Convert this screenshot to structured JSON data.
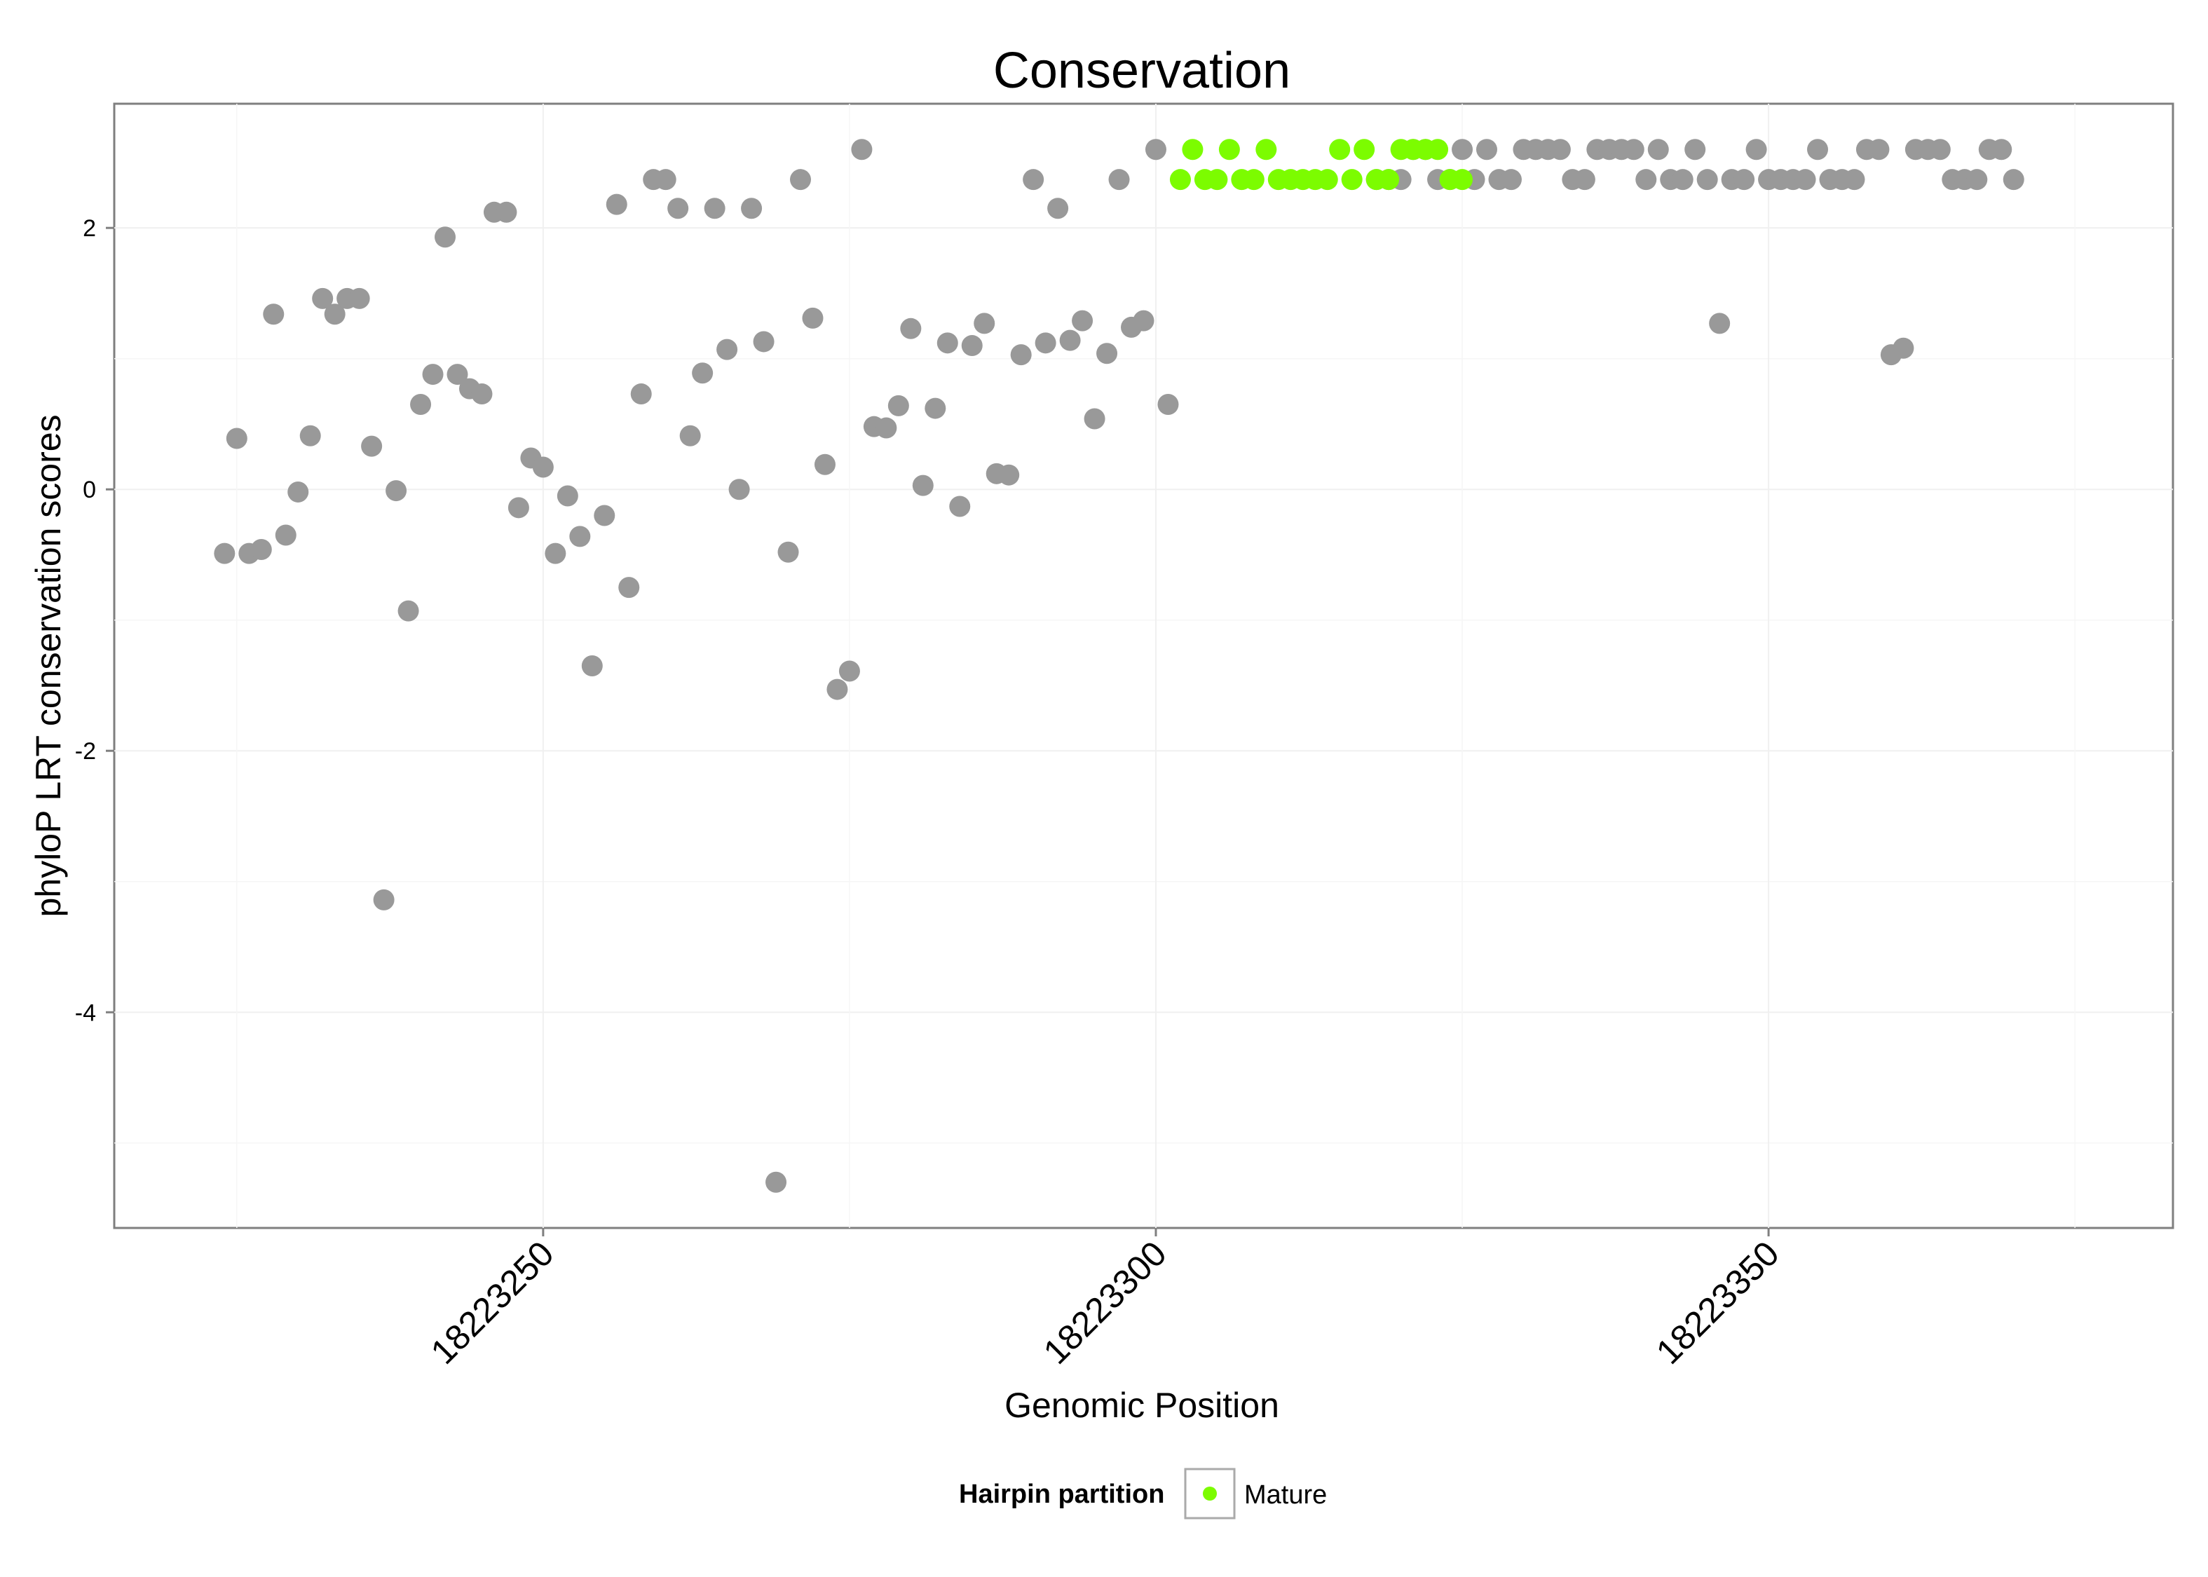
{
  "chart_data": {
    "type": "scatter",
    "title": "Conservation",
    "xlabel": "Genomic Position",
    "ylabel": "phyloP LRT conservation scores",
    "xlim": [
      18223215,
      18223383
    ],
    "ylim": [
      -5.65,
      2.95
    ],
    "x_ticks": [
      18223250,
      18223300,
      18223350
    ],
    "y_ticks": [
      -4,
      -2,
      0,
      2
    ],
    "grid": true,
    "legend": {
      "title": "Hairpin partition",
      "position": "bottom",
      "entries": [
        {
          "label": "Mature",
          "color": "#7CFC00"
        }
      ]
    },
    "colors": {
      "background": "#7CFC00",
      "mature": "#7CFC00"
    },
    "series": [
      {
        "name": "",
        "color": "#999999",
        "points": [
          [
            18223224,
            -0.49
          ],
          [
            18223225,
            0.39
          ],
          [
            18223226,
            -0.49
          ],
          [
            18223227,
            -0.46
          ],
          [
            18223228,
            1.34
          ],
          [
            18223229,
            -0.35
          ],
          [
            18223230,
            -0.02
          ],
          [
            18223231,
            0.41
          ],
          [
            18223232,
            1.46
          ],
          [
            18223233,
            1.34
          ],
          [
            18223234,
            1.46
          ],
          [
            18223235,
            1.46
          ],
          [
            18223236,
            0.33
          ],
          [
            18223237,
            -3.14
          ],
          [
            18223238,
            -0.01
          ],
          [
            18223239,
            -0.93
          ],
          [
            18223240,
            0.65
          ],
          [
            18223241,
            0.88
          ],
          [
            18223242,
            1.93
          ],
          [
            18223243,
            0.88
          ],
          [
            18223244,
            0.77
          ],
          [
            18223245,
            0.73
          ],
          [
            18223246,
            2.12
          ],
          [
            18223247,
            2.12
          ],
          [
            18223248,
            -0.14
          ],
          [
            18223249,
            0.24
          ],
          [
            18223250,
            0.17
          ],
          [
            18223251,
            -0.49
          ],
          [
            18223252,
            -0.05
          ],
          [
            18223253,
            -0.36
          ],
          [
            18223254,
            -1.35
          ],
          [
            18223255,
            -0.2
          ],
          [
            18223256,
            2.18
          ],
          [
            18223257,
            -0.75
          ],
          [
            18223258,
            0.73
          ],
          [
            18223259,
            2.37
          ],
          [
            18223260,
            2.37
          ],
          [
            18223261,
            2.15
          ],
          [
            18223262,
            0.41
          ],
          [
            18223263,
            0.89
          ],
          [
            18223264,
            2.15
          ],
          [
            18223265,
            1.07
          ],
          [
            18223266,
            0.0
          ],
          [
            18223267,
            2.15
          ],
          [
            18223268,
            1.13
          ],
          [
            18223269,
            -5.3
          ],
          [
            18223270,
            -0.48
          ],
          [
            18223271,
            2.37
          ],
          [
            18223272,
            1.31
          ],
          [
            18223273,
            0.19
          ],
          [
            18223274,
            -1.53
          ],
          [
            18223275,
            -1.39
          ],
          [
            18223276,
            2.6
          ],
          [
            18223277,
            0.48
          ],
          [
            18223278,
            0.47
          ],
          [
            18223279,
            0.64
          ],
          [
            18223280,
            1.23
          ],
          [
            18223281,
            0.03
          ],
          [
            18223282,
            0.62
          ],
          [
            18223283,
            1.12
          ],
          [
            18223284,
            -0.13
          ],
          [
            18223285,
            1.1
          ],
          [
            18223286,
            1.27
          ],
          [
            18223287,
            0.12
          ],
          [
            18223288,
            0.11
          ],
          [
            18223289,
            1.03
          ],
          [
            18223290,
            2.37
          ],
          [
            18223291,
            1.12
          ],
          [
            18223292,
            2.15
          ],
          [
            18223293,
            1.14
          ],
          [
            18223294,
            1.29
          ],
          [
            18223295,
            0.54
          ],
          [
            18223296,
            1.04
          ],
          [
            18223297,
            2.37
          ],
          [
            18223298,
            1.24
          ],
          [
            18223299,
            1.29
          ],
          [
            18223300,
            2.6
          ],
          [
            18223301,
            0.65
          ],
          [
            18223318,
            2.37
          ],
          [
            18223319,
            2.37
          ],
          [
            18223320,
            2.37
          ],
          [
            18223321,
            2.6
          ],
          [
            18223322,
            2.6
          ],
          [
            18223323,
            2.37
          ],
          [
            18223324,
            2.37
          ],
          [
            18223325,
            2.6
          ],
          [
            18223326,
            2.37
          ],
          [
            18223327,
            2.6
          ],
          [
            18223328,
            2.37
          ],
          [
            18223329,
            2.37
          ],
          [
            18223330,
            2.6
          ],
          [
            18223331,
            2.6
          ],
          [
            18223332,
            2.6
          ],
          [
            18223333,
            2.6
          ],
          [
            18223334,
            2.37
          ],
          [
            18223335,
            2.37
          ],
          [
            18223336,
            2.6
          ],
          [
            18223337,
            2.6
          ],
          [
            18223338,
            2.6
          ],
          [
            18223339,
            2.6
          ],
          [
            18223340,
            2.37
          ],
          [
            18223341,
            2.6
          ],
          [
            18223342,
            2.37
          ],
          [
            18223343,
            2.37
          ],
          [
            18223344,
            2.6
          ],
          [
            18223345,
            2.37
          ],
          [
            18223346,
            1.27
          ],
          [
            18223347,
            2.37
          ],
          [
            18223348,
            2.37
          ],
          [
            18223349,
            2.6
          ],
          [
            18223350,
            2.37
          ],
          [
            18223351,
            2.37
          ],
          [
            18223352,
            2.37
          ],
          [
            18223353,
            2.37
          ],
          [
            18223354,
            2.6
          ],
          [
            18223355,
            2.37
          ],
          [
            18223356,
            2.37
          ],
          [
            18223357,
            2.37
          ],
          [
            18223358,
            2.6
          ],
          [
            18223359,
            2.6
          ],
          [
            18223360,
            1.03
          ],
          [
            18223361,
            1.08
          ],
          [
            18223362,
            2.6
          ],
          [
            18223363,
            2.6
          ],
          [
            18223364,
            2.6
          ],
          [
            18223365,
            2.37
          ],
          [
            18223366,
            2.37
          ],
          [
            18223367,
            2.37
          ],
          [
            18223368,
            2.6
          ],
          [
            18223369,
            2.6
          ],
          [
            18223370,
            2.37
          ]
        ]
      },
      {
        "name": "Mature",
        "color": "#7CFC00",
        "points": [
          [
            18223302,
            2.37
          ],
          [
            18223303,
            2.6
          ],
          [
            18223304,
            2.37
          ],
          [
            18223305,
            2.37
          ],
          [
            18223306,
            2.6
          ],
          [
            18223307,
            2.37
          ],
          [
            18223308,
            2.37
          ],
          [
            18223309,
            2.6
          ],
          [
            18223310,
            2.37
          ],
          [
            18223311,
            2.37
          ],
          [
            18223312,
            2.37
          ],
          [
            18223313,
            2.37
          ],
          [
            18223314,
            2.37
          ],
          [
            18223315,
            2.6
          ],
          [
            18223316,
            2.37
          ],
          [
            18223317,
            2.6
          ],
          [
            18223318,
            2.37
          ],
          [
            18223319,
            2.37
          ],
          [
            18223320,
            2.6
          ],
          [
            18223321,
            2.6
          ],
          [
            18223322,
            2.6
          ],
          [
            18223323,
            2.6
          ],
          [
            18223324,
            2.37
          ],
          [
            18223325,
            2.37
          ]
        ]
      }
    ]
  }
}
